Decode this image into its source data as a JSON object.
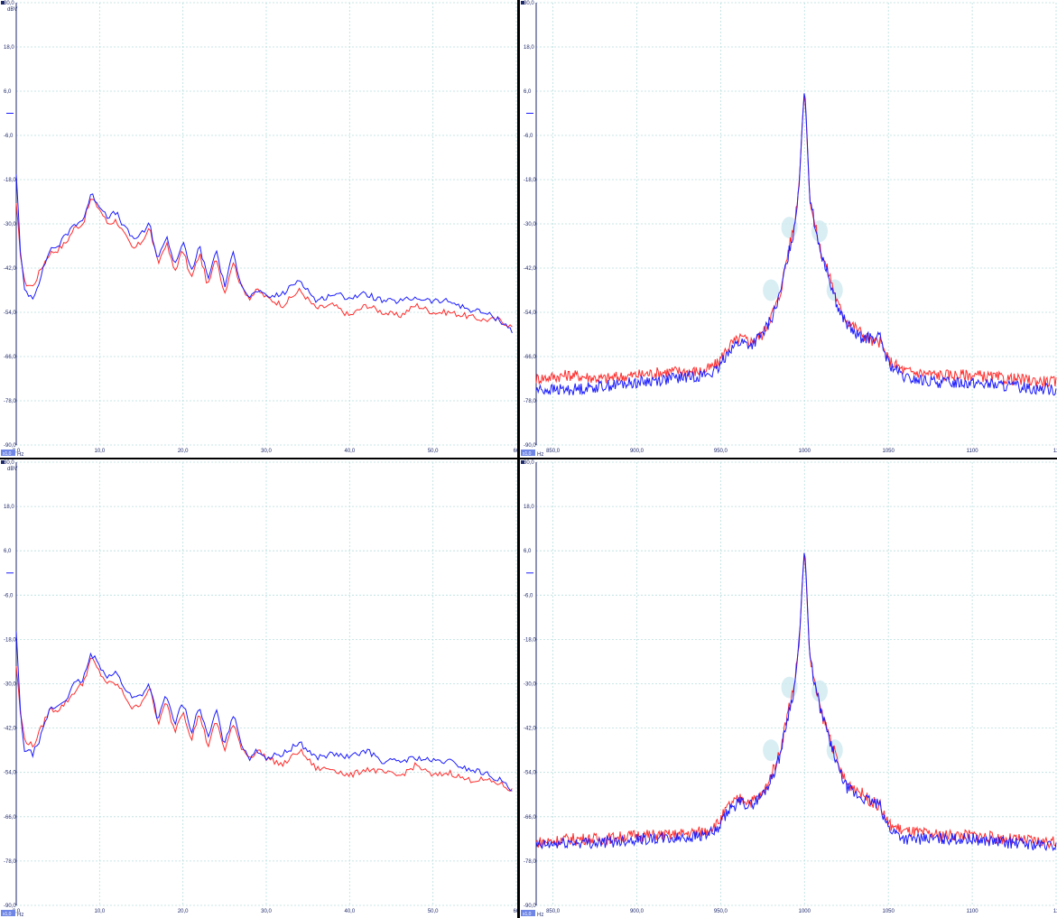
{
  "colors": {
    "background": "#ffffff",
    "grid": "#b9dede",
    "axis_text": "#1f2a6b",
    "series_a": "#ff2b2b",
    "series_b": "#1a1aff",
    "highlight": "#cfeaf0",
    "divider": "#000000",
    "badge": "#6f86e6"
  },
  "panels": [
    {
      "id": "top-left",
      "y_unit": "dBV",
      "x_unit": "Hz",
      "badge": "x1,0",
      "has_markers": false,
      "show_ylabel": true
    },
    {
      "id": "top-right",
      "y_unit": "dBV",
      "x_unit": "Hz",
      "badge": "x1,0",
      "has_markers": true,
      "show_ylabel": false
    },
    {
      "id": "bottom-left",
      "y_unit": "dBV",
      "x_unit": "Hz",
      "badge": "x1,0",
      "has_markers": false,
      "show_ylabel": true
    },
    {
      "id": "bottom-right",
      "y_unit": "dBV",
      "x_unit": "Hz",
      "badge": "x1,0",
      "has_markers": true,
      "show_ylabel": false
    }
  ],
  "chart_data": [
    {
      "type": "line",
      "panel": "top-left",
      "ylabel": "dBV",
      "xlabel": "Hz",
      "ylim": [
        -90,
        30
      ],
      "xlim": [
        0,
        60
      ],
      "yticks": [
        "30,0",
        "18,0",
        "6,0",
        "-6,0",
        "-18,0",
        "-30,0",
        "-42,0",
        "-54,0",
        "-66,0",
        "-78,0",
        "-90,0"
      ],
      "xticks": [
        "0,0",
        "10,0",
        "20,0",
        "30,0",
        "40,0",
        "50,0",
        "60"
      ],
      "grid": true,
      "x": [
        0,
        0.5,
        1,
        2,
        3,
        4,
        5,
        6,
        7,
        8,
        9,
        10,
        11,
        12,
        13,
        14,
        15,
        16,
        17,
        18,
        19,
        20,
        21,
        22,
        23,
        24,
        25,
        26,
        27,
        28,
        29,
        30,
        32,
        34,
        36,
        38,
        40,
        42,
        44,
        46,
        48,
        50,
        52,
        54,
        56,
        58,
        59.5
      ],
      "series": [
        {
          "values": [
            -25,
            -38,
            -46,
            -47,
            -42,
            -38,
            -37,
            -35,
            -31,
            -30,
            -23,
            -26,
            -30,
            -29,
            -33,
            -37,
            -35,
            -31,
            -41,
            -35,
            -43,
            -37,
            -45,
            -38,
            -47,
            -39,
            -49,
            -40,
            -47,
            -50,
            -48,
            -50,
            -52,
            -48,
            -53,
            -52,
            -55,
            -52,
            -54,
            -55,
            -52,
            -54,
            -54,
            -55,
            -56,
            -56,
            -58
          ]
        },
        {
          "values": [
            -16,
            -38,
            -48,
            -50,
            -44,
            -37,
            -36,
            -33,
            -30,
            -29,
            -22,
            -25,
            -28,
            -27,
            -31,
            -34,
            -33,
            -30,
            -40,
            -33,
            -41,
            -35,
            -43,
            -36,
            -45,
            -37,
            -47,
            -38,
            -46,
            -50,
            -48,
            -50,
            -49,
            -45,
            -51,
            -49,
            -50,
            -49,
            -51,
            -51,
            -50,
            -51,
            -51,
            -53,
            -54,
            -56,
            -59
          ]
        }
      ]
    },
    {
      "type": "line",
      "panel": "top-right",
      "ylabel": "dBV",
      "xlabel": "Hz",
      "ylim": [
        -90,
        30
      ],
      "xlim": [
        840,
        1150
      ],
      "yticks": [
        "30,0",
        "18,0",
        "6,0",
        "-6,0",
        "-18,0",
        "-30,0",
        "-42,0",
        "-54,0",
        "-66,0",
        "-78,0",
        "-90,0"
      ],
      "xticks": [
        "850,0",
        "900,0",
        "950,0",
        "1000",
        "1050",
        "1100",
        "11"
      ],
      "grid": true,
      "x": [
        840,
        860,
        880,
        900,
        920,
        940,
        948,
        955,
        962,
        968,
        975,
        980,
        985,
        990,
        994,
        997,
        999,
        1000,
        1001,
        1003,
        1006,
        1010,
        1015,
        1020,
        1025,
        1030,
        1035,
        1040,
        1045,
        1050,
        1060,
        1080,
        1100,
        1120,
        1150
      ],
      "series": [
        {
          "values": [
            -72,
            -71,
            -72,
            -71,
            -70,
            -70,
            -68,
            -63,
            -61,
            -62,
            -60,
            -55,
            -50,
            -38,
            -30,
            -18,
            0,
            6,
            -2,
            -22,
            -30,
            -38,
            -44,
            -52,
            -56,
            -58,
            -60,
            -62,
            -62,
            -67,
            -70,
            -71,
            -71,
            -72,
            -73
          ]
        },
        {
          "values": [
            -75,
            -75,
            -74,
            -73,
            -72,
            -71,
            -70,
            -64,
            -62,
            -63,
            -60,
            -56,
            -50,
            -39,
            -31,
            -18,
            0,
            7,
            -1,
            -22,
            -30,
            -38,
            -45,
            -53,
            -57,
            -60,
            -61,
            -61,
            -61,
            -68,
            -72,
            -73,
            -73,
            -74,
            -75
          ]
        }
      ]
    },
    {
      "type": "line",
      "panel": "bottom-left",
      "ylabel": "dBV",
      "xlabel": "Hz",
      "ylim": [
        -90,
        30
      ],
      "xlim": [
        0,
        60
      ],
      "yticks": [
        "30,0",
        "18,0",
        "6,0",
        "-6,0",
        "-18,0",
        "-30,0",
        "-42,0",
        "-54,0",
        "-66,0",
        "-78,0",
        "-90,0"
      ],
      "xticks": [
        "0,0",
        "10,0",
        "20,0",
        "30,0",
        "40,0",
        "50,0",
        "60"
      ],
      "grid": true,
      "x": [
        0,
        0.5,
        1,
        2,
        3,
        4,
        5,
        6,
        7,
        8,
        9,
        10,
        11,
        12,
        13,
        14,
        15,
        16,
        17,
        18,
        19,
        20,
        21,
        22,
        23,
        24,
        25,
        26,
        27,
        28,
        29,
        30,
        32,
        34,
        36,
        38,
        40,
        42,
        44,
        46,
        48,
        50,
        52,
        54,
        56,
        58,
        59.5
      ],
      "series": [
        {
          "values": [
            -25,
            -38,
            -45,
            -47,
            -42,
            -37,
            -37,
            -35,
            -32,
            -30,
            -23,
            -27,
            -30,
            -30,
            -33,
            -37,
            -35,
            -31,
            -41,
            -35,
            -43,
            -37,
            -45,
            -38,
            -47,
            -40,
            -48,
            -41,
            -47,
            -50,
            -48,
            -50,
            -52,
            -48,
            -53,
            -53,
            -55,
            -53,
            -54,
            -55,
            -52,
            -55,
            -54,
            -56,
            -56,
            -57,
            -59
          ]
        },
        {
          "values": [
            -16,
            -38,
            -48,
            -49,
            -44,
            -37,
            -36,
            -34,
            -30,
            -29,
            -22,
            -25,
            -28,
            -27,
            -31,
            -34,
            -33,
            -30,
            -40,
            -33,
            -41,
            -35,
            -43,
            -36,
            -45,
            -37,
            -47,
            -38,
            -46,
            -50,
            -48,
            -50,
            -49,
            -46,
            -50,
            -49,
            -50,
            -48,
            -51,
            -51,
            -50,
            -51,
            -51,
            -53,
            -54,
            -56,
            -59
          ]
        }
      ]
    },
    {
      "type": "line",
      "panel": "bottom-right",
      "ylabel": "dBV",
      "xlabel": "Hz",
      "ylim": [
        -90,
        30
      ],
      "xlim": [
        840,
        1150
      ],
      "yticks": [
        "30,0",
        "18,0",
        "6,0",
        "-6,0",
        "-18,0",
        "-30,0",
        "-42,0",
        "-54,0",
        "-66,0",
        "-78,0",
        "-90,0"
      ],
      "xticks": [
        "850,0",
        "900,0",
        "950,0",
        "1000",
        "1050",
        "1100",
        "11"
      ],
      "grid": true,
      "x": [
        840,
        860,
        880,
        900,
        920,
        940,
        948,
        955,
        962,
        968,
        975,
        980,
        985,
        990,
        994,
        997,
        999,
        1000,
        1001,
        1003,
        1006,
        1010,
        1015,
        1020,
        1025,
        1030,
        1035,
        1040,
        1045,
        1050,
        1060,
        1080,
        1100,
        1120,
        1150
      ],
      "series": [
        {
          "values": [
            -73,
            -72,
            -72,
            -71,
            -71,
            -70,
            -68,
            -63,
            -61,
            -62,
            -60,
            -55,
            -49,
            -38,
            -30,
            -18,
            0,
            6,
            -2,
            -22,
            -30,
            -38,
            -44,
            -52,
            -57,
            -58,
            -60,
            -62,
            -63,
            -68,
            -70,
            -71,
            -71,
            -72,
            -73
          ]
        },
        {
          "values": [
            -74,
            -73,
            -73,
            -72,
            -72,
            -71,
            -70,
            -64,
            -62,
            -63,
            -60,
            -56,
            -50,
            -39,
            -31,
            -18,
            0,
            7,
            -1,
            -22,
            -30,
            -38,
            -45,
            -53,
            -58,
            -60,
            -61,
            -62,
            -63,
            -69,
            -72,
            -72,
            -72,
            -73,
            -74
          ]
        }
      ]
    }
  ]
}
